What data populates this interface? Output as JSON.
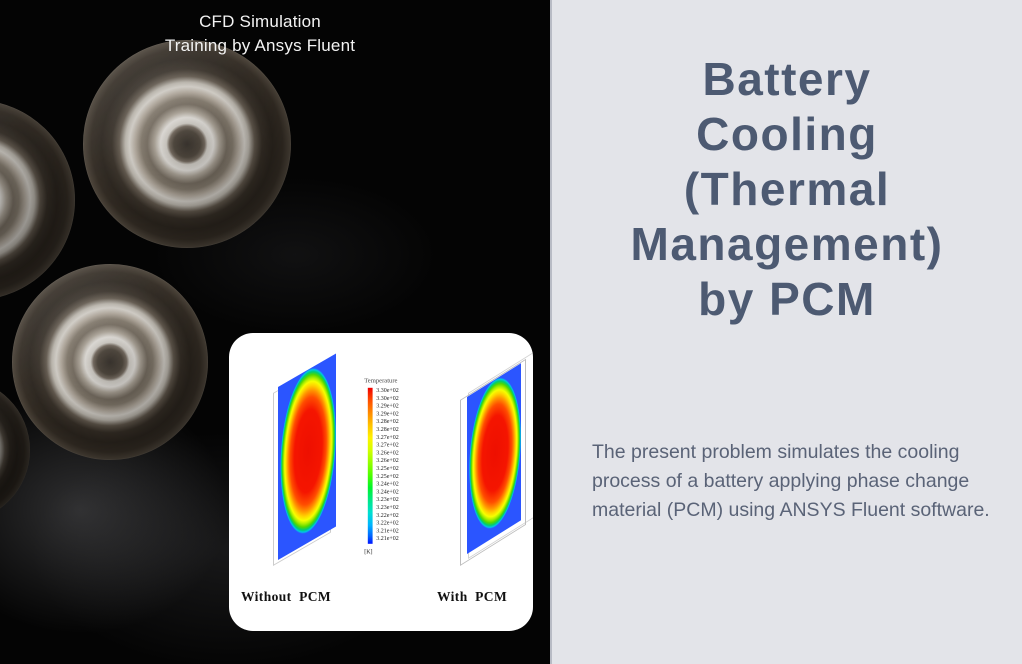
{
  "banner": {
    "line1": "CFD Simulation",
    "line2": "Training by Ansys Fluent"
  },
  "card": {
    "label_without": "Without  PCM",
    "label_with": "With  PCM",
    "legend": {
      "title": "Temperature",
      "unit": "[K]",
      "ticks": [
        "3.30e+02",
        "3.30e+02",
        "3.29e+02",
        "3.29e+02",
        "3.28e+02",
        "3.28e+02",
        "3.27e+02",
        "3.27e+02",
        "3.26e+02",
        "3.26e+02",
        "3.25e+02",
        "3.25e+02",
        "3.24e+02",
        "3.24e+02",
        "3.23e+02",
        "3.23e+02",
        "3.22e+02",
        "3.22e+02",
        "3.21e+02",
        "3.21e+02"
      ]
    }
  },
  "panel": {
    "title_lines": [
      "Battery",
      "Cooling",
      "(Thermal",
      "Management)",
      "by PCM"
    ],
    "desc_lines": [
      "The present problem simulates the cooling",
      "process of a battery applying phase change",
      "material (PCM) using ANSYS Fluent software."
    ]
  },
  "chart_data": {
    "type": "heatmap",
    "title": "Temperature",
    "unit": "K",
    "cases": [
      "Without PCM",
      "With PCM"
    ],
    "scale_min": 321,
    "scale_max": 330,
    "legend_ticks_kelvin": [
      330,
      330,
      329,
      329,
      328,
      328,
      327,
      327,
      326,
      326,
      325,
      325,
      324,
      324,
      323,
      323,
      322,
      322,
      321,
      321
    ],
    "description": "Contour plots of battery plate temperature, red core (~330 K) fading to green/blue (~321 K) at edges"
  },
  "colors": {
    "title_text": "#4d5a72",
    "panel_bg": "#e3e4e9",
    "photo_bg": "#040404",
    "hot": "#ff0000",
    "cold": "#0014ff"
  }
}
